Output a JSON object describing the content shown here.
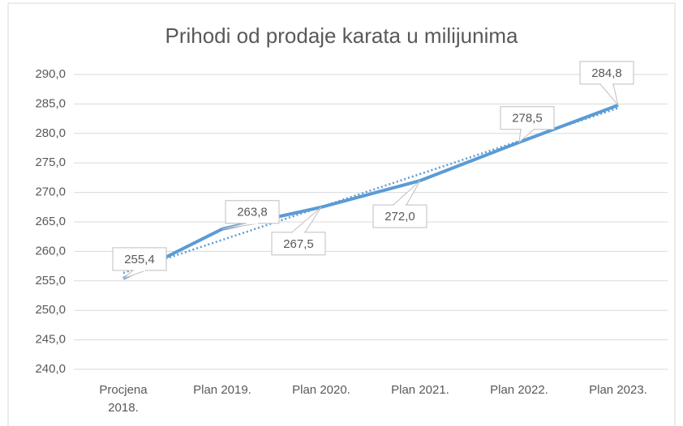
{
  "chart_data": {
    "type": "line",
    "title": "Prihodi od prodaje karata u milijunima",
    "categories": [
      "Procjena 2018.",
      "Plan 2019.",
      "Plan 2020.",
      "Plan 2021.",
      "Plan 2022.",
      "Plan 2023."
    ],
    "series": [
      {
        "name": "Prihodi",
        "color": "#5b9bd5",
        "values": [
          255.4,
          263.8,
          267.5,
          272.0,
          278.5,
          284.8
        ],
        "value_labels": [
          "255,4",
          "263,8",
          "267,5",
          "272,0",
          "278,5",
          "284,8"
        ]
      }
    ],
    "ylim": [
      240,
      290
    ],
    "yticks": [
      {
        "value": 240,
        "label": "240,0"
      },
      {
        "value": 245,
        "label": "245,0"
      },
      {
        "value": 250,
        "label": "250,0"
      },
      {
        "value": 255,
        "label": "255,0"
      },
      {
        "value": 260,
        "label": "260,0"
      },
      {
        "value": 265,
        "label": "265,0"
      },
      {
        "value": 270,
        "label": "270,0"
      },
      {
        "value": 275,
        "label": "275,0"
      },
      {
        "value": 280,
        "label": "280,0"
      },
      {
        "value": 285,
        "label": "285,0"
      },
      {
        "value": 290,
        "label": "290,0"
      }
    ],
    "grid": true,
    "trendline": "linear"
  }
}
